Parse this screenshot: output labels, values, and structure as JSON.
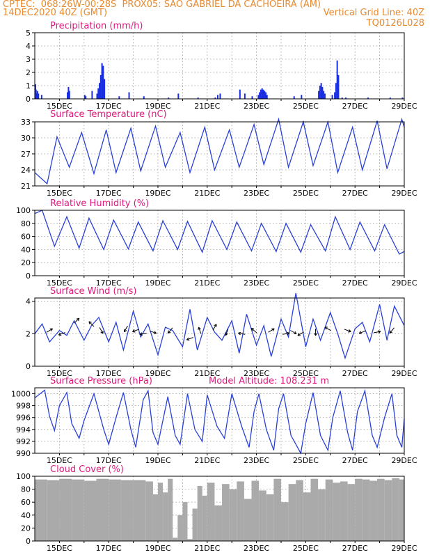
{
  "header": {
    "line1": "CPTEC:  068:26W-00:28S  PROX05: SAO GABRIEL DA CACHOEIRA (AM)",
    "date": "14DEC2020 40Z (GMT)",
    "grid_note": "Vertical Grid Line: 40Z",
    "code": "TQ0126L028"
  },
  "colors": {
    "header": "#e8892e",
    "titles": "#e0197d",
    "line": "#2840d8",
    "bars": "#1a2fe0",
    "cloud": "#aaaaaa"
  },
  "x_tick_labels": [
    "15DEC",
    "17DEC",
    "19DEC",
    "21DEC",
    "23DEC",
    "25DEC",
    "27DEC",
    "29DEC"
  ],
  "chart_data": [
    {
      "type": "bar",
      "title": "Precipitation (mm/h)",
      "ylim": [
        0,
        5
      ],
      "yticks": [
        0,
        1,
        2,
        3,
        4,
        5
      ],
      "grid": true,
      "x_days": [
        14.0,
        14.02,
        14.05,
        14.08,
        14.12,
        14.25,
        15.3,
        15.34,
        15.38,
        16.0,
        16.04,
        16.3,
        16.5,
        16.55,
        16.6,
        16.65,
        16.7,
        16.75,
        16.8,
        17.4,
        17.8,
        18.4,
        19.4,
        19.8,
        20.6,
        21.3,
        21.4,
        21.5,
        22.3,
        22.5,
        22.8,
        23.05,
        23.1,
        23.15,
        23.2,
        23.25,
        23.3,
        23.35,
        23.4,
        24.5,
        24.8,
        25.5,
        25.55,
        25.6,
        25.65,
        25.7,
        25.75,
        26.05,
        26.15,
        26.2,
        26.25,
        26.3,
        26.45,
        26.6,
        27.5,
        28.4,
        28.9
      ],
      "values": [
        1.1,
        0.7,
        0.4,
        0.6,
        0.4,
        0.3,
        0.5,
        0.9,
        0.6,
        0.3,
        0.2,
        0.6,
        0.4,
        0.8,
        1.2,
        1.8,
        2.7,
        2.5,
        1.5,
        0.2,
        0.5,
        0.2,
        0.1,
        0.4,
        0.1,
        0.1,
        0.3,
        0.4,
        0.7,
        0.4,
        0.2,
        0.3,
        0.5,
        0.7,
        0.8,
        0.7,
        0.6,
        0.5,
        0.3,
        0.2,
        0.3,
        0.6,
        1.0,
        1.2,
        0.9,
        0.6,
        0.4,
        0.3,
        0.5,
        1.2,
        2.9,
        1.8,
        0.1,
        0.1,
        0.1,
        0.1,
        0.1
      ]
    },
    {
      "type": "line",
      "title": "Surface Temperature (nC)",
      "ylim": [
        21,
        33
      ],
      "yticks": [
        21,
        24,
        27,
        30,
        33
      ],
      "grid": true,
      "x_days": [
        14.0,
        14.5,
        14.9,
        15.4,
        15.9,
        16.4,
        16.9,
        17.3,
        17.9,
        18.3,
        18.9,
        19.3,
        19.9,
        20.3,
        20.9,
        21.3,
        21.9,
        22.3,
        22.9,
        23.3,
        23.9,
        24.3,
        24.9,
        25.3,
        25.9,
        26.3,
        26.9,
        27.3,
        27.9,
        28.3,
        28.9,
        29.0
      ],
      "values": [
        23.5,
        21.4,
        30.2,
        24.5,
        31.0,
        23.3,
        31.5,
        23.5,
        31.8,
        23.8,
        32.2,
        24.5,
        31.0,
        23.5,
        32.0,
        24.0,
        31.5,
        24.5,
        32.5,
        25.0,
        33.5,
        24.5,
        33.0,
        24.8,
        33.0,
        23.5,
        32.0,
        24.0,
        33.2,
        24.2,
        33.5,
        32.0
      ]
    },
    {
      "type": "line",
      "title": "Relative Humidity (%)",
      "ylim": [
        0,
        100
      ],
      "yticks": [
        0,
        20,
        40,
        60,
        80,
        100
      ],
      "grid": true,
      "x_days": [
        14.0,
        14.3,
        14.8,
        15.3,
        15.8,
        16.2,
        16.8,
        17.2,
        17.8,
        18.2,
        18.8,
        19.2,
        19.8,
        20.2,
        20.8,
        21.2,
        21.8,
        22.2,
        22.8,
        23.2,
        23.8,
        24.2,
        24.8,
        25.2,
        25.8,
        26.2,
        26.8,
        27.2,
        27.8,
        28.2,
        28.8,
        29.0
      ],
      "values": [
        95,
        100,
        45,
        90,
        42,
        88,
        40,
        85,
        41,
        82,
        38,
        84,
        40,
        83,
        36,
        84,
        40,
        82,
        38,
        80,
        37,
        80,
        36,
        78,
        38,
        90,
        40,
        82,
        38,
        78,
        33,
        37
      ]
    },
    {
      "type": "line",
      "title": "Surface Wind (m/s)",
      "ylim": [
        0,
        4.2
      ],
      "yticks": [
        0,
        2,
        4
      ],
      "grid": true,
      "x_days": [
        14.0,
        14.3,
        14.6,
        15.0,
        15.3,
        15.6,
        16.0,
        16.3,
        16.6,
        17.0,
        17.3,
        17.6,
        18.0,
        18.3,
        18.6,
        19.0,
        19.3,
        19.6,
        20.0,
        20.3,
        20.6,
        21.0,
        21.3,
        21.6,
        22.0,
        22.3,
        22.6,
        23.0,
        23.3,
        23.6,
        24.0,
        24.3,
        24.6,
        25.0,
        25.3,
        25.6,
        26.0,
        26.3,
        26.6,
        27.0,
        27.3,
        27.6,
        28.0,
        28.3,
        28.6,
        29.0
      ],
      "values": [
        2.0,
        2.6,
        1.5,
        2.2,
        1.9,
        2.8,
        1.6,
        2.5,
        3.0,
        1.5,
        2.7,
        1.0,
        3.4,
        1.8,
        2.6,
        0.7,
        2.4,
        2.2,
        1.2,
        3.5,
        1.0,
        3.0,
        2.1,
        1.6,
        2.8,
        0.8,
        3.2,
        1.3,
        2.5,
        0.6,
        2.9,
        1.8,
        4.5,
        1.2,
        2.9,
        1.6,
        3.3,
        2.0,
        0.5,
        2.3,
        2.7,
        1.5,
        3.8,
        1.6,
        3.7,
        2.5
      ],
      "arrows": [
        {
          "day": 14.6,
          "speed": 2.2,
          "dir_deg": 30
        },
        {
          "day": 15.1,
          "speed": 2.0,
          "dir_deg": 200
        },
        {
          "day": 15.7,
          "speed": 2.8,
          "dir_deg": 45
        },
        {
          "day": 16.3,
          "speed": 2.6,
          "dir_deg": 135
        },
        {
          "day": 16.7,
          "speed": 2.2,
          "dir_deg": 300
        },
        {
          "day": 17.7,
          "speed": 2.3,
          "dir_deg": 240
        },
        {
          "day": 18.1,
          "speed": 2.2,
          "dir_deg": 200
        },
        {
          "day": 18.4,
          "speed": 2.0,
          "dir_deg": 190
        },
        {
          "day": 18.8,
          "speed": 2.1,
          "dir_deg": 340
        },
        {
          "day": 19.5,
          "speed": 2.2,
          "dir_deg": 230
        },
        {
          "day": 20.3,
          "speed": 1.7,
          "dir_deg": 200
        },
        {
          "day": 20.7,
          "speed": 2.2,
          "dir_deg": 110
        },
        {
          "day": 21.3,
          "speed": 2.4,
          "dir_deg": 60
        },
        {
          "day": 21.8,
          "speed": 2.1,
          "dir_deg": 250
        },
        {
          "day": 22.4,
          "speed": 2.0,
          "dir_deg": 170
        },
        {
          "day": 22.9,
          "speed": 2.2,
          "dir_deg": 140
        },
        {
          "day": 23.6,
          "speed": 2.2,
          "dir_deg": 30
        },
        {
          "day": 24.2,
          "speed": 2.0,
          "dir_deg": 10
        },
        {
          "day": 24.5,
          "speed": 2.1,
          "dir_deg": 330
        },
        {
          "day": 24.8,
          "speed": 2.0,
          "dir_deg": 210
        },
        {
          "day": 25.4,
          "speed": 2.1,
          "dir_deg": 270
        },
        {
          "day": 25.9,
          "speed": 2.3,
          "dir_deg": 150
        },
        {
          "day": 26.7,
          "speed": 2.2,
          "dir_deg": 340
        },
        {
          "day": 27.3,
          "speed": 2.1,
          "dir_deg": 200
        },
        {
          "day": 27.9,
          "speed": 2.1,
          "dir_deg": 10
        },
        {
          "day": 28.5,
          "speed": 2.2,
          "dir_deg": 230
        }
      ]
    },
    {
      "type": "line",
      "title": "Surface Pressure (hPa)",
      "subtitle": "Model Altitude: 108.231 m",
      "ylim": [
        990,
        1001
      ],
      "yticks": [
        990,
        992,
        994,
        996,
        998,
        1000
      ],
      "grid": true,
      "x_days": [
        14.0,
        14.4,
        14.6,
        14.8,
        15.0,
        15.3,
        15.5,
        15.8,
        16.0,
        16.4,
        16.8,
        17.0,
        17.3,
        17.6,
        17.9,
        18.1,
        18.4,
        18.6,
        18.8,
        19.0,
        19.4,
        19.7,
        19.9,
        20.2,
        20.5,
        20.8,
        21.0,
        21.4,
        21.7,
        22.0,
        22.4,
        22.7,
        22.9,
        23.1,
        23.4,
        23.7,
        23.9,
        24.1,
        24.4,
        24.8,
        25.0,
        25.3,
        25.6,
        25.9,
        26.1,
        26.4,
        26.7,
        26.9,
        27.1,
        27.4,
        27.7,
        27.9,
        28.2,
        28.5,
        28.7,
        28.9,
        29.0
      ],
      "values": [
        999.3,
        1000.6,
        996.2,
        993.8,
        998.0,
        1000.2,
        995.0,
        992.5,
        995.5,
        1000.0,
        994.0,
        991.5,
        996.0,
        1000.2,
        994.0,
        991.0,
        999.0,
        1000.5,
        993.5,
        991.5,
        999.5,
        993.0,
        991.5,
        1000.0,
        994.0,
        992.0,
        999.8,
        994.5,
        992.5,
        1000.0,
        994.5,
        991.0,
        997.0,
        1000.0,
        994.0,
        990.5,
        997.5,
        1000.0,
        993.0,
        990.0,
        995.0,
        1000.2,
        993.0,
        990.5,
        996.0,
        1000.5,
        993.5,
        990.5,
        997.0,
        1000.5,
        993.0,
        991.0,
        996.0,
        1000.0,
        993.0,
        991.0,
        995.8
      ]
    },
    {
      "type": "bar",
      "title": "Cloud Cover (%)",
      "ylim": [
        0,
        100
      ],
      "yticks": [
        0,
        20,
        40,
        60,
        80,
        100
      ],
      "grid": true,
      "x_days": [
        14.0,
        14.5,
        15.0,
        15.5,
        16.0,
        16.5,
        17.0,
        17.5,
        18.0,
        18.5,
        18.8,
        19.0,
        19.2,
        19.4,
        19.6,
        19.8,
        20.0,
        20.2,
        20.4,
        20.6,
        20.8,
        21.0,
        21.3,
        21.6,
        21.9,
        22.2,
        22.5,
        22.8,
        23.1,
        23.4,
        23.7,
        24.0,
        24.3,
        24.6,
        24.9,
        25.2,
        25.5,
        25.8,
        26.1,
        26.4,
        26.7,
        27.0,
        27.3,
        27.6,
        27.9,
        28.2,
        28.5,
        28.8,
        29.0
      ],
      "values": [
        95,
        94,
        96,
        95,
        93,
        96,
        95,
        94,
        94,
        92,
        72,
        90,
        75,
        96,
        5,
        40,
        60,
        3,
        50,
        85,
        70,
        90,
        55,
        88,
        80,
        92,
        65,
        93,
        78,
        72,
        96,
        60,
        88,
        94,
        75,
        96,
        80,
        95,
        90,
        92,
        88,
        96,
        95,
        93,
        96,
        94,
        97,
        95,
        96
      ]
    }
  ]
}
